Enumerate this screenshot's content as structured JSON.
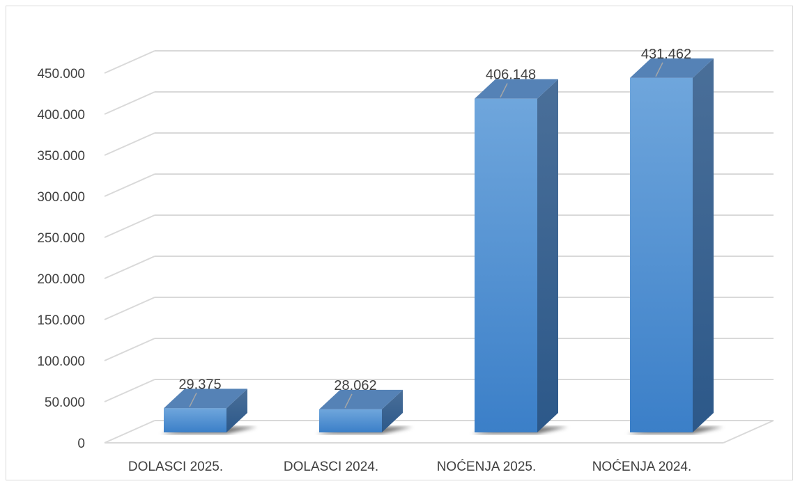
{
  "chart_data": {
    "type": "bar",
    "style": "3d-column",
    "categories": [
      "DOLASCI 2025.",
      "DOLASCI 2024.",
      "NOĆENJA 2025.",
      "NOĆENJA 2024."
    ],
    "values": [
      29375,
      28062,
      406148,
      431462
    ],
    "data_labels": [
      "29.375",
      "28.062",
      "406.148",
      "431.462"
    ],
    "ylim": [
      0,
      450000
    ],
    "yticks": [
      0,
      50000,
      100000,
      150000,
      200000,
      250000,
      300000,
      350000,
      400000,
      450000
    ],
    "ytick_labels": [
      "0",
      "50.000",
      "100.000",
      "150.000",
      "200.000",
      "250.000",
      "300.000",
      "350.000",
      "400.000",
      "450.000"
    ],
    "grid": true,
    "legend": "none",
    "title": "",
    "xlabel": "",
    "ylabel": "",
    "colors": {
      "bar_top": "#6fa6dc",
      "bar_bottom": "#3b7fc8",
      "bar_side_top": "#4a6f99",
      "bar_side_bottom": "#2c5889",
      "bar_cap": "#5582b6",
      "grid": "#d9d9d9",
      "text": "#404040",
      "leader": "#a6a6a6"
    }
  }
}
